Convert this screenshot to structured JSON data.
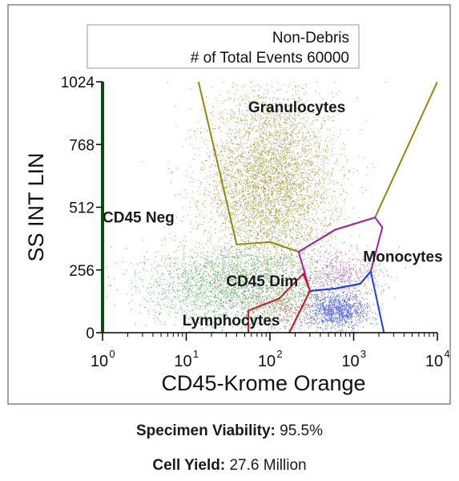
{
  "chart_data": {
    "type": "scatter",
    "title": "Non-Debris",
    "subtitle": "# of Total Events 60000",
    "xlabel": "CD45-Krome Orange",
    "ylabel": "SS INT LIN",
    "x_scale": "log",
    "xlim": [
      1,
      10000
    ],
    "ylim": [
      0,
      1024
    ],
    "x_ticks": [
      {
        "value": 1,
        "base": "10",
        "exp": "0"
      },
      {
        "value": 10,
        "base": "10",
        "exp": "1"
      },
      {
        "value": 100,
        "base": "10",
        "exp": "2"
      },
      {
        "value": 1000,
        "base": "10",
        "exp": "3"
      },
      {
        "value": 10000,
        "base": "10",
        "exp": "4"
      }
    ],
    "y_ticks": [
      {
        "value": 0,
        "label": "0"
      },
      {
        "value": 256,
        "label": "256"
      },
      {
        "value": 512,
        "label": "512"
      },
      {
        "value": 768,
        "label": "768"
      },
      {
        "value": 1024,
        "label": "1024"
      }
    ],
    "gates": [
      {
        "name": "Granulocytes",
        "color": "#8b8b12",
        "points": [
          [
            14,
            1024
          ],
          [
            40,
            360
          ],
          [
            100,
            370
          ],
          [
            220,
            330
          ],
          [
            600,
            420
          ],
          [
            1800,
            470
          ],
          [
            10000,
            1024
          ]
        ]
      },
      {
        "name": "Monocytes",
        "color": "#a020a0",
        "points": [
          [
            220,
            330
          ],
          [
            600,
            420
          ],
          [
            1800,
            470
          ],
          [
            2200,
            430
          ],
          [
            1600,
            250
          ],
          [
            1200,
            200
          ],
          [
            600,
            180
          ],
          [
            300,
            170
          ],
          [
            220,
            330
          ]
        ]
      },
      {
        "name": "Lymphocytes",
        "color": "#1c3fe0",
        "points": [
          [
            170,
            0
          ],
          [
            300,
            170
          ],
          [
            600,
            180
          ],
          [
            1200,
            200
          ],
          [
            1600,
            250
          ],
          [
            2300,
            0
          ]
        ]
      },
      {
        "name": "CD45 Dim",
        "color": "#d01818",
        "points": [
          [
            55,
            0
          ],
          [
            55,
            90
          ],
          [
            130,
            140
          ],
          [
            250,
            240
          ],
          [
            300,
            170
          ],
          [
            170,
            0
          ]
        ]
      },
      {
        "name": "CD45 Neg",
        "color": "#1a9a1a",
        "points": [
          [
            1,
            0
          ],
          [
            1,
            1024
          ]
        ]
      }
    ],
    "populations": [
      {
        "name": "Granulocytes",
        "color": "#8e8a1e",
        "center": [
          100,
          610
        ],
        "spread": [
          0.38,
          190
        ],
        "count": 5200
      },
      {
        "name": "CD45 Dim",
        "color": "#2e9a3a",
        "center": [
          40,
          190
        ],
        "spread": [
          0.55,
          85
        ],
        "count": 2600
      },
      {
        "name": "Monocytes",
        "color": "#a04fb0",
        "center": [
          700,
          230
        ],
        "spread": [
          0.25,
          50
        ],
        "count": 600
      },
      {
        "name": "Lymphocytes",
        "color": "#2a3fd8",
        "center": [
          650,
          90
        ],
        "spread": [
          0.18,
          35
        ],
        "count": 1100
      },
      {
        "name": "Debris-red",
        "color": "#d03030",
        "center": [
          150,
          100
        ],
        "spread": [
          0.2,
          45
        ],
        "count": 250
      }
    ],
    "labels": [
      {
        "text": "Granulocytes",
        "x": 55,
        "y": 900
      },
      {
        "text": "CD45 Neg",
        "x": 1.0,
        "y": 450
      },
      {
        "text": "Monocytes",
        "x": 1300,
        "y": 290
      },
      {
        "text": "CD45 Dim",
        "x": 30,
        "y": 190
      },
      {
        "text": "Lymphocytes",
        "x": 9,
        "y": 30
      }
    ],
    "colors": {
      "axis": "#000000",
      "frame": "#000000",
      "left_border": "#0b4d0b"
    }
  },
  "footer": {
    "viability_label": "Specimen Viability:",
    "viability_value": "95.5%",
    "yield_label": "Cell Yield:",
    "yield_value": "27.6 Million"
  }
}
